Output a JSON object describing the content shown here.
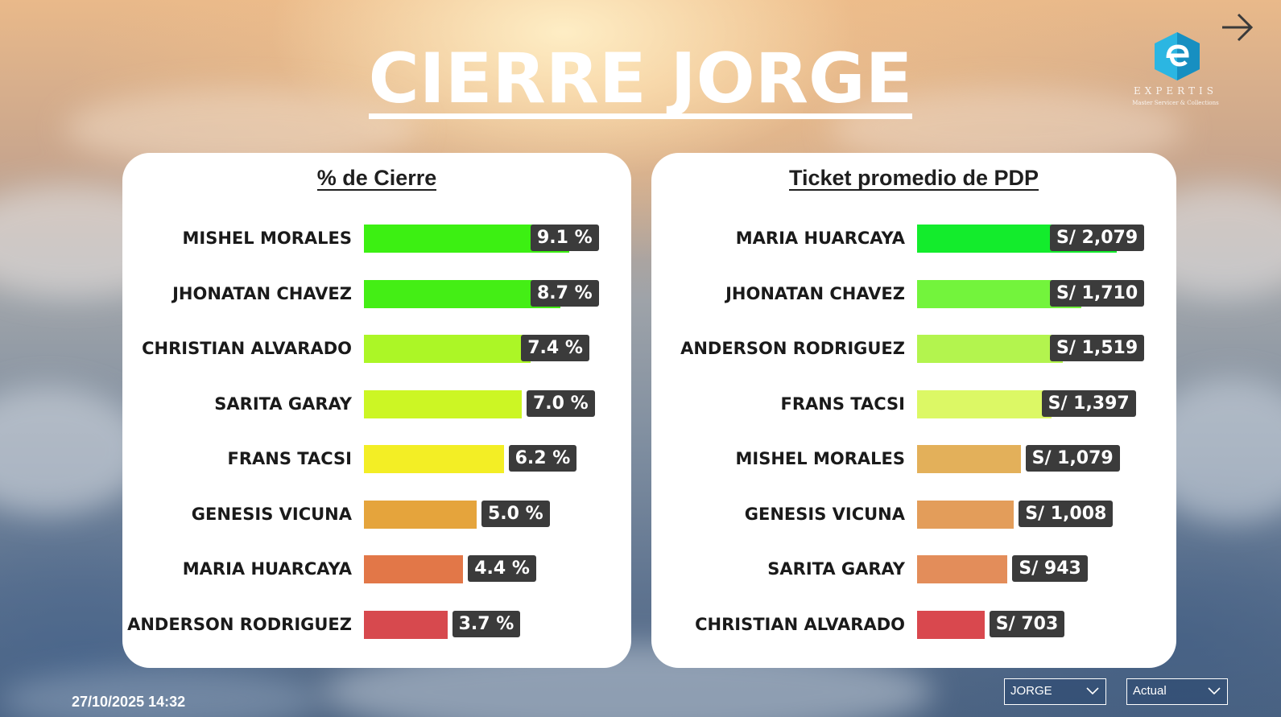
{
  "header": {
    "title": "CIERRE JORGE"
  },
  "logo": {
    "icon": "experts-logo-icon",
    "word": "EXPERTIS",
    "sub": "Master Servicer & Collections"
  },
  "footer": {
    "timestamp": "27/10/2025 14:32"
  },
  "filters": {
    "agent": "JORGE",
    "period": "Actual"
  },
  "chart_data": [
    {
      "type": "bar",
      "orientation": "horizontal",
      "title": "% de Cierre",
      "categories": [
        "MISHEL MORALES",
        "JHONATAN CHAVEZ",
        "CHRISTIAN ALVARADO",
        "SARITA GARAY",
        "FRANS TACSI",
        "GENESIS VICUNA",
        "MARIA HUARCAYA",
        "ANDERSON RODRIGUEZ"
      ],
      "values": [
        9.1,
        8.7,
        7.4,
        7.0,
        6.2,
        5.0,
        4.4,
        3.7
      ],
      "labels": [
        "9.1 %",
        "8.7 %",
        "7.4 %",
        "7.0 %",
        "6.2 %",
        "5.0 %",
        "4.4 %",
        "3.7 %"
      ],
      "colors": [
        "#3cf012",
        "#44ee15",
        "#acf626",
        "#ccf624",
        "#f3ee25",
        "#e5a43c",
        "#e27748",
        "#d7494e"
      ],
      "xlim": [
        0,
        12.5
      ]
    },
    {
      "type": "bar",
      "orientation": "horizontal",
      "title": "Ticket promedio de PDP",
      "categories": [
        "MARIA HUARCAYA",
        "JHONATAN CHAVEZ",
        "ANDERSON RODRIGUEZ",
        "FRANS TACSI",
        "MISHEL MORALES",
        "GENESIS VICUNA",
        "SARITA GARAY",
        "CHRISTIAN ALVARADO"
      ],
      "values": [
        2079,
        1710,
        1519,
        1397,
        1079,
        1008,
        943,
        703
      ],
      "labels": [
        "S/ 2,079",
        "S/ 1,710",
        "S/ 1,519",
        "S/ 1,397",
        "S/ 1,079",
        "S/ 1,008",
        "S/ 943",
        "S/ 703"
      ],
      "colors": [
        "#13ec2c",
        "#73f43c",
        "#b3f44e",
        "#dcf865",
        "#e3b05a",
        "#e39d5a",
        "#e38d5a",
        "#d9484e"
      ],
      "xlim": [
        0,
        2600
      ]
    }
  ]
}
